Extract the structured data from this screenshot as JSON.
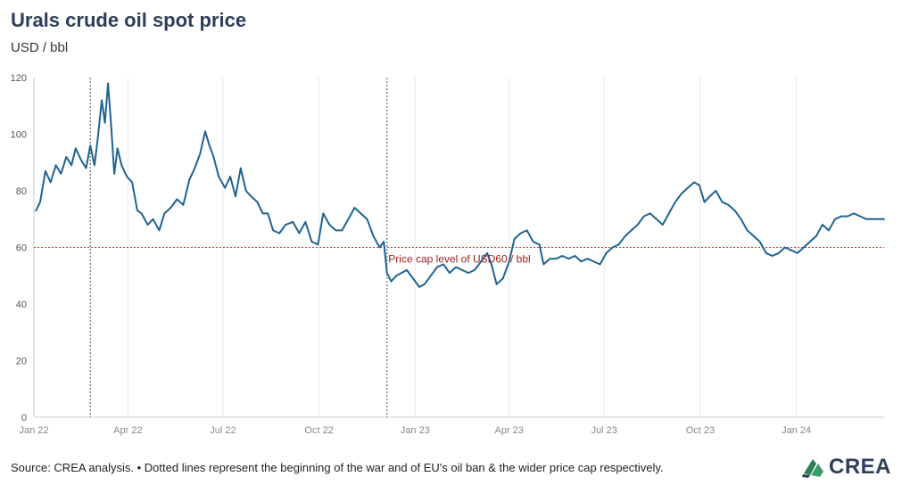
{
  "header": {
    "title": "Urals crude oil spot price",
    "subtitle": "USD / bbl"
  },
  "footer": {
    "source": "Source: CREA analysis. • Dotted lines represent the beginning of the war and of EU's oil ban & the wider price cap respectively."
  },
  "logo": {
    "text": "CREA",
    "icon": "crea-logo-icon"
  },
  "colors": {
    "series": "#1f6391",
    "cap_line": "#c62828",
    "cap_label": "#9b1c1c",
    "event_line": "#888888",
    "grid": "#e8e8e8"
  },
  "chart_data": {
    "type": "line",
    "title": "Urals crude oil spot price",
    "ylabel": "USD / bbl",
    "xlim": [
      "2022-01-01",
      "2024-03-25"
    ],
    "ylim": [
      0,
      120
    ],
    "y_ticks": [
      0,
      20,
      40,
      60,
      80,
      100,
      120
    ],
    "x_ticks": [
      {
        "date": "2022-01-01",
        "label": "Jan 22"
      },
      {
        "date": "2022-04-01",
        "label": "Apr 22"
      },
      {
        "date": "2022-07-01",
        "label": "Jul 22"
      },
      {
        "date": "2022-10-01",
        "label": "Oct 22"
      },
      {
        "date": "2023-01-01",
        "label": "Jan 23"
      },
      {
        "date": "2023-04-01",
        "label": "Apr 23"
      },
      {
        "date": "2023-07-01",
        "label": "Jul 23"
      },
      {
        "date": "2023-10-01",
        "label": "Oct 23"
      },
      {
        "date": "2024-01-01",
        "label": "Jan 24"
      }
    ],
    "grid": "vertical",
    "reference_line": {
      "y": 60,
      "label": "Price cap level of USD60 / bbl"
    },
    "event_lines": [
      "2022-02-24",
      "2022-12-05"
    ],
    "series": [
      {
        "points": [
          [
            "2022-01-03",
            73
          ],
          [
            "2022-01-07",
            76
          ],
          [
            "2022-01-12",
            87
          ],
          [
            "2022-01-17",
            83
          ],
          [
            "2022-01-22",
            89
          ],
          [
            "2022-01-27",
            86
          ],
          [
            "2022-02-01",
            92
          ],
          [
            "2022-02-06",
            89
          ],
          [
            "2022-02-10",
            95
          ],
          [
            "2022-02-15",
            91
          ],
          [
            "2022-02-20",
            88
          ],
          [
            "2022-02-24",
            96
          ],
          [
            "2022-02-28",
            89
          ],
          [
            "2022-03-03",
            98
          ],
          [
            "2022-03-07",
            112
          ],
          [
            "2022-03-10",
            104
          ],
          [
            "2022-03-13",
            118
          ],
          [
            "2022-03-16",
            103
          ],
          [
            "2022-03-19",
            86
          ],
          [
            "2022-03-22",
            95
          ],
          [
            "2022-03-26",
            89
          ],
          [
            "2022-03-31",
            85
          ],
          [
            "2022-04-05",
            83
          ],
          [
            "2022-04-10",
            73
          ],
          [
            "2022-04-14",
            72
          ],
          [
            "2022-04-20",
            68
          ],
          [
            "2022-04-25",
            70
          ],
          [
            "2022-05-01",
            66
          ],
          [
            "2022-05-06",
            72
          ],
          [
            "2022-05-12",
            74
          ],
          [
            "2022-05-18",
            77
          ],
          [
            "2022-05-24",
            75
          ],
          [
            "2022-05-30",
            84
          ],
          [
            "2022-06-04",
            88
          ],
          [
            "2022-06-09",
            93
          ],
          [
            "2022-06-14",
            101
          ],
          [
            "2022-06-18",
            96
          ],
          [
            "2022-06-22",
            92
          ],
          [
            "2022-06-27",
            85
          ],
          [
            "2022-07-03",
            81
          ],
          [
            "2022-07-08",
            85
          ],
          [
            "2022-07-13",
            78
          ],
          [
            "2022-07-18",
            88
          ],
          [
            "2022-07-23",
            80
          ],
          [
            "2022-07-28",
            78
          ],
          [
            "2022-08-03",
            76
          ],
          [
            "2022-08-08",
            72
          ],
          [
            "2022-08-13",
            72
          ],
          [
            "2022-08-18",
            66
          ],
          [
            "2022-08-24",
            65
          ],
          [
            "2022-08-30",
            68
          ],
          [
            "2022-09-06",
            69
          ],
          [
            "2022-09-12",
            65
          ],
          [
            "2022-09-18",
            69
          ],
          [
            "2022-09-24",
            62
          ],
          [
            "2022-09-30",
            61
          ],
          [
            "2022-10-05",
            72
          ],
          [
            "2022-10-11",
            68
          ],
          [
            "2022-10-17",
            66
          ],
          [
            "2022-10-23",
            66
          ],
          [
            "2022-10-29",
            70
          ],
          [
            "2022-11-04",
            74
          ],
          [
            "2022-11-10",
            72
          ],
          [
            "2022-11-16",
            70
          ],
          [
            "2022-11-22",
            64
          ],
          [
            "2022-11-28",
            60
          ],
          [
            "2022-12-02",
            62
          ],
          [
            "2022-12-05",
            51
          ],
          [
            "2022-12-09",
            48
          ],
          [
            "2022-12-14",
            50
          ],
          [
            "2022-12-19",
            51
          ],
          [
            "2022-12-24",
            52
          ],
          [
            "2022-12-30",
            49
          ],
          [
            "2023-01-05",
            46
          ],
          [
            "2023-01-10",
            47
          ],
          [
            "2023-01-16",
            50
          ],
          [
            "2023-01-22",
            53
          ],
          [
            "2023-01-28",
            54
          ],
          [
            "2023-02-03",
            51
          ],
          [
            "2023-02-09",
            53
          ],
          [
            "2023-02-15",
            52
          ],
          [
            "2023-02-21",
            51
          ],
          [
            "2023-02-27",
            52
          ],
          [
            "2023-03-05",
            55
          ],
          [
            "2023-03-11",
            58
          ],
          [
            "2023-03-15",
            54
          ],
          [
            "2023-03-20",
            47
          ],
          [
            "2023-03-26",
            49
          ],
          [
            "2023-04-01",
            55
          ],
          [
            "2023-04-06",
            63
          ],
          [
            "2023-04-12",
            65
          ],
          [
            "2023-04-18",
            66
          ],
          [
            "2023-04-24",
            62
          ],
          [
            "2023-04-30",
            61
          ],
          [
            "2023-05-04",
            54
          ],
          [
            "2023-05-10",
            56
          ],
          [
            "2023-05-16",
            56
          ],
          [
            "2023-05-22",
            57
          ],
          [
            "2023-05-28",
            56
          ],
          [
            "2023-06-03",
            57
          ],
          [
            "2023-06-09",
            55
          ],
          [
            "2023-06-15",
            56
          ],
          [
            "2023-06-21",
            55
          ],
          [
            "2023-06-27",
            54
          ],
          [
            "2023-07-03",
            58
          ],
          [
            "2023-07-09",
            60
          ],
          [
            "2023-07-15",
            61
          ],
          [
            "2023-07-21",
            64
          ],
          [
            "2023-07-27",
            66
          ],
          [
            "2023-08-02",
            68
          ],
          [
            "2023-08-08",
            71
          ],
          [
            "2023-08-14",
            72
          ],
          [
            "2023-08-20",
            70
          ],
          [
            "2023-08-26",
            68
          ],
          [
            "2023-09-01",
            72
          ],
          [
            "2023-09-07",
            76
          ],
          [
            "2023-09-13",
            79
          ],
          [
            "2023-09-19",
            81
          ],
          [
            "2023-09-25",
            83
          ],
          [
            "2023-09-30",
            82
          ],
          [
            "2023-10-05",
            76
          ],
          [
            "2023-10-10",
            78
          ],
          [
            "2023-10-16",
            80
          ],
          [
            "2023-10-22",
            76
          ],
          [
            "2023-10-28",
            75
          ],
          [
            "2023-11-03",
            73
          ],
          [
            "2023-11-09",
            70
          ],
          [
            "2023-11-15",
            66
          ],
          [
            "2023-11-21",
            64
          ],
          [
            "2023-11-27",
            62
          ],
          [
            "2023-12-03",
            58
          ],
          [
            "2023-12-09",
            57
          ],
          [
            "2023-12-15",
            58
          ],
          [
            "2023-12-21",
            60
          ],
          [
            "2023-12-27",
            59
          ],
          [
            "2024-01-02",
            58
          ],
          [
            "2024-01-08",
            60
          ],
          [
            "2024-01-14",
            62
          ],
          [
            "2024-01-20",
            64
          ],
          [
            "2024-01-26",
            68
          ],
          [
            "2024-02-01",
            66
          ],
          [
            "2024-02-07",
            70
          ],
          [
            "2024-02-13",
            71
          ],
          [
            "2024-02-19",
            71
          ],
          [
            "2024-02-25",
            72
          ],
          [
            "2024-03-02",
            71
          ],
          [
            "2024-03-08",
            70
          ],
          [
            "2024-03-14",
            70
          ],
          [
            "2024-03-20",
            70
          ],
          [
            "2024-03-25",
            70
          ]
        ]
      }
    ]
  }
}
